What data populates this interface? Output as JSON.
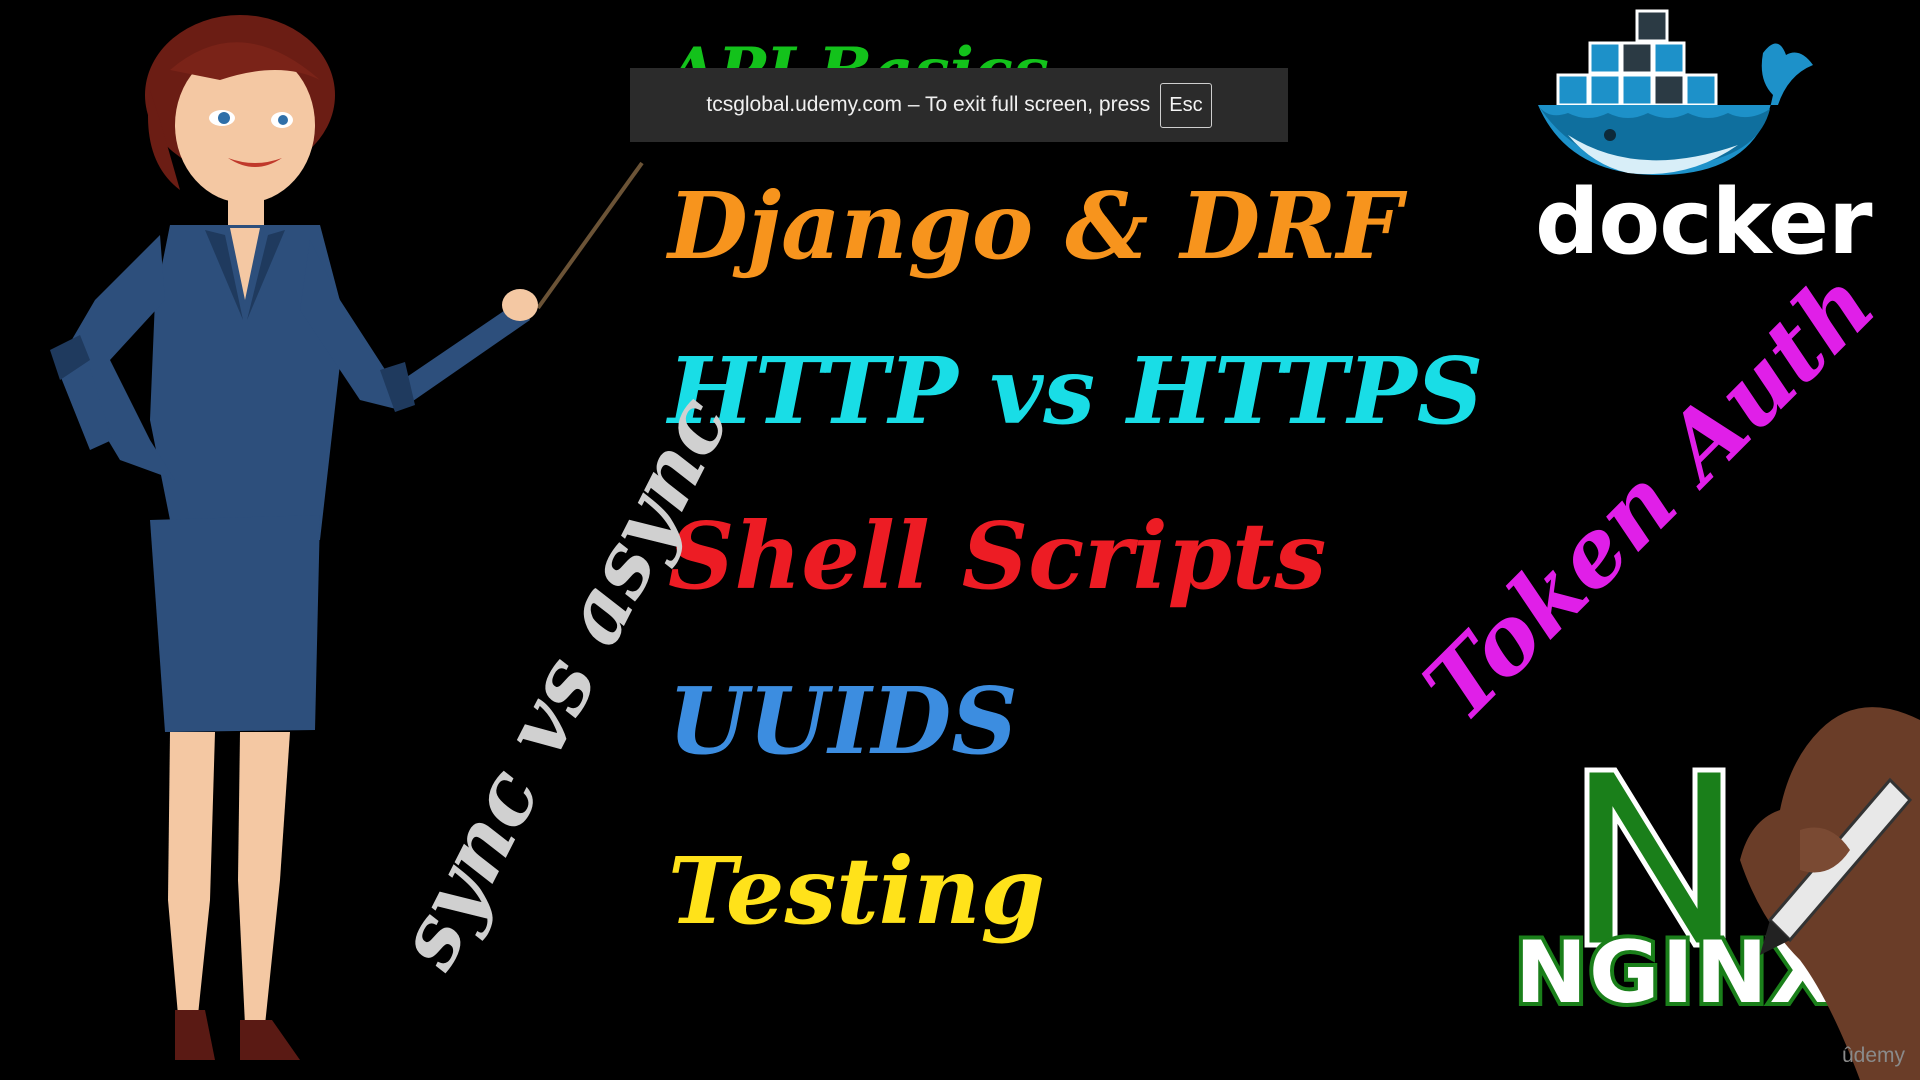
{
  "fullscreen_banner": {
    "message": "tcsglobal.udemy.com – To exit full screen, press",
    "key": "Esc"
  },
  "slide": {
    "topics": [
      {
        "label": "API Basics",
        "color": "#13c21b"
      },
      {
        "label": "Django & DRF",
        "color": "#f7941d"
      },
      {
        "label": "HTTP vs HTTPS",
        "color": "#19dde6"
      },
      {
        "label": "Shell Scripts",
        "color": "#ed1c24"
      },
      {
        "label": "UUIDS",
        "color": "#3c8de0"
      },
      {
        "label": "Testing",
        "color": "#ffe21a"
      }
    ],
    "rotated": {
      "sync": {
        "label": "sync vs async",
        "color": "#d0d0d0"
      },
      "token": {
        "label": "Token Auth",
        "color": "#e01fe8"
      }
    },
    "logos": {
      "docker": {
        "word": "docker",
        "icon": "docker-whale-icon",
        "color": "#1d91c9"
      },
      "nginx": {
        "word": "NGINX",
        "icon": "nginx-n-icon",
        "color": "#1a7f1a"
      }
    }
  },
  "watermark": "ûdemy"
}
